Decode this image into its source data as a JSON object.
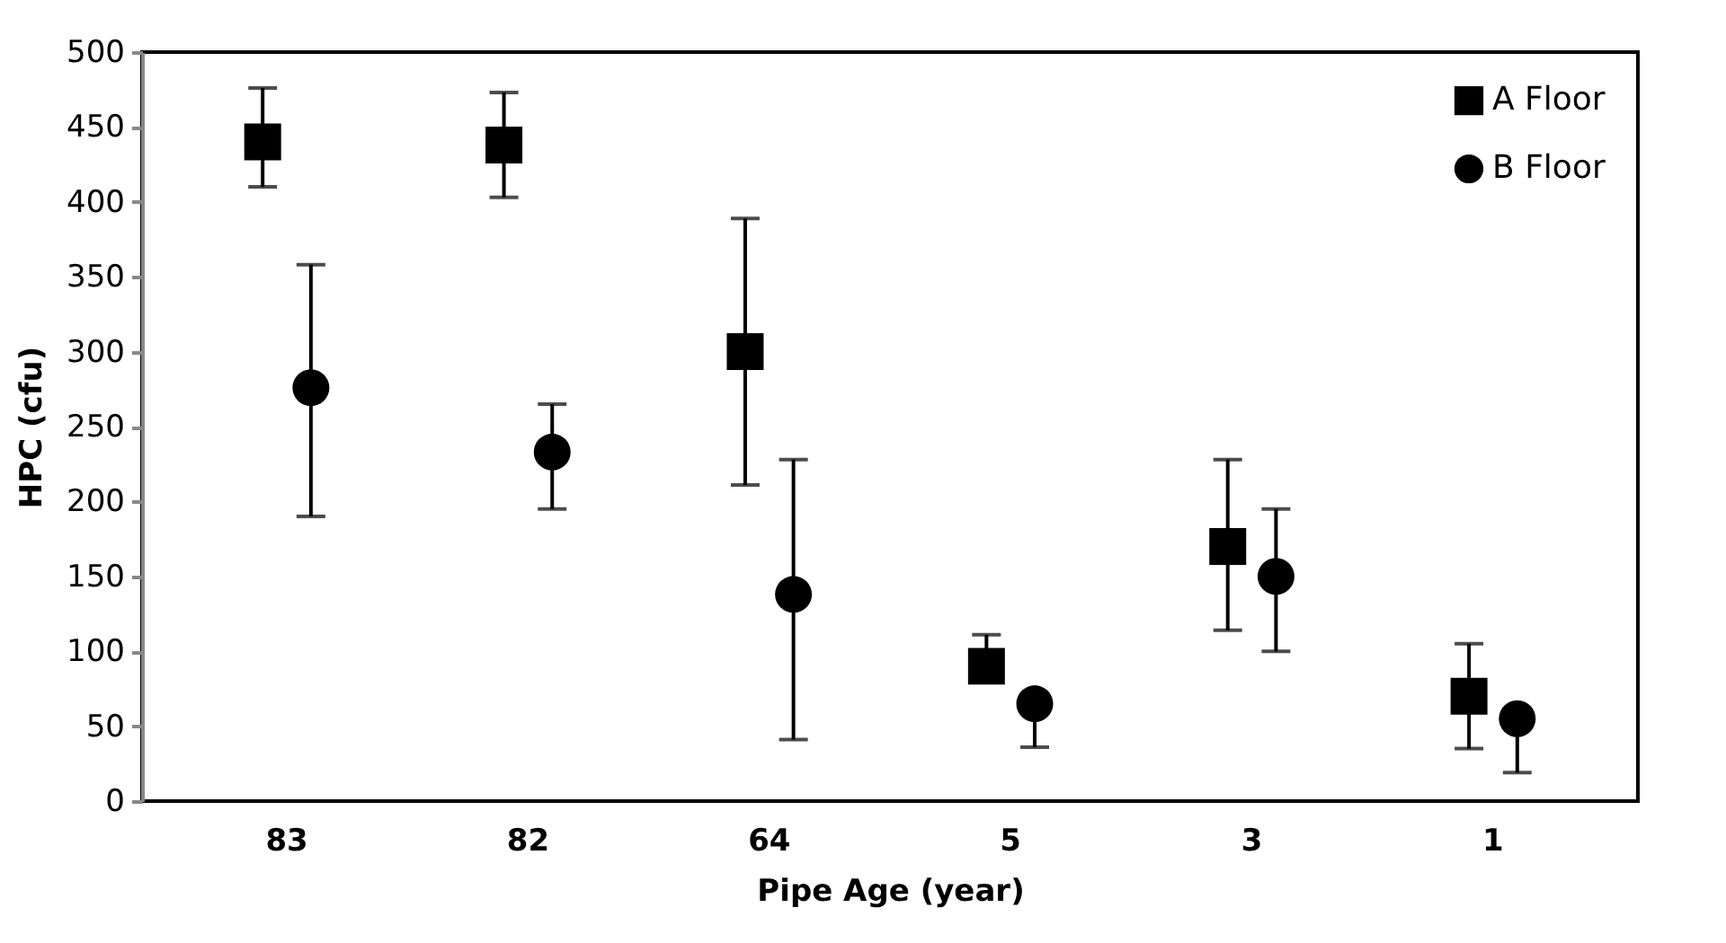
{
  "chart_data": {
    "type": "scatter",
    "xlabel": "Pipe Age (year)",
    "ylabel": "HPC (cfu)",
    "categories": [
      "83",
      "82",
      "64",
      "5",
      "3",
      "1"
    ],
    "ylim": [
      0,
      500
    ],
    "yticks": [
      0,
      50,
      100,
      150,
      200,
      250,
      300,
      350,
      400,
      450,
      500
    ],
    "grid": false,
    "legend": "top right",
    "series": [
      {
        "name": "A Floor",
        "color": "#000000",
        "marker": "square",
        "values": [
          440,
          438,
          300,
          90,
          170,
          70
        ],
        "errors": [
          [
            410,
            476
          ],
          [
            403,
            473
          ],
          [
            211,
            389
          ],
          [
            90,
            111
          ],
          [
            114,
            228
          ],
          [
            35,
            105
          ]
        ]
      },
      {
        "name": "B Floor",
        "color": "#000000",
        "marker": "circle",
        "values": [
          276,
          233,
          138,
          65,
          150,
          55
        ],
        "errors": [
          [
            190,
            358
          ],
          [
            195,
            265
          ],
          [
            41,
            228
          ],
          [
            36,
            65
          ],
          [
            100,
            195
          ],
          [
            19,
            55
          ]
        ]
      }
    ]
  }
}
